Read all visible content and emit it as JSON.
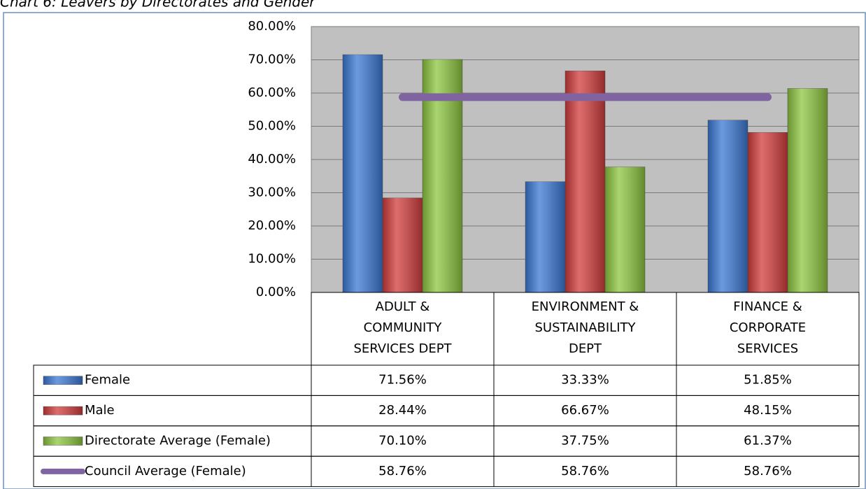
{
  "chart_data": {
    "type": "bar",
    "title": "Chart 6: Leavers by Directorates and Gender",
    "categories": [
      "ADULT & COMMUNITY SERVICES DEPT",
      "ENVIRONMENT & SUSTAINABILITY DEPT",
      "FINANCE & CORPORATE SERVICES"
    ],
    "series": [
      {
        "name": "Female",
        "color": "#3b78d4",
        "values": [
          71.56,
          33.33,
          51.85
        ],
        "value_labels": [
          "71.56%",
          "33.33%",
          "51.85%"
        ]
      },
      {
        "name": "Male",
        "color": "#d23c3c",
        "values": [
          28.44,
          66.67,
          48.15
        ],
        "value_labels": [
          "28.44%",
          "66.67%",
          "48.15%"
        ]
      },
      {
        "name": "Directorate Average (Female)",
        "color": "#8dc63f",
        "values": [
          70.1,
          37.75,
          61.37
        ],
        "value_labels": [
          "70.10%",
          "37.75%",
          "61.37%"
        ]
      },
      {
        "name": "Council Average (Female)",
        "color": "#8064a2",
        "type": "line",
        "values": [
          58.76,
          58.76,
          58.76
        ],
        "value_labels": [
          "58.76%",
          "58.76%",
          "58.76%"
        ]
      }
    ],
    "ylim": [
      0,
      80
    ],
    "yticks": [
      {
        "value": 0,
        "label": "0.00%"
      },
      {
        "value": 10,
        "label": "10.00%"
      },
      {
        "value": 20,
        "label": "20.00%"
      },
      {
        "value": 30,
        "label": "30.00%"
      },
      {
        "value": 40,
        "label": "40.00%"
      },
      {
        "value": 50,
        "label": "50.00%"
      },
      {
        "value": 60,
        "label": "60.00%"
      },
      {
        "value": 70,
        "label": "70.00%"
      },
      {
        "value": 80,
        "label": "80.00%"
      }
    ],
    "grid": true
  }
}
